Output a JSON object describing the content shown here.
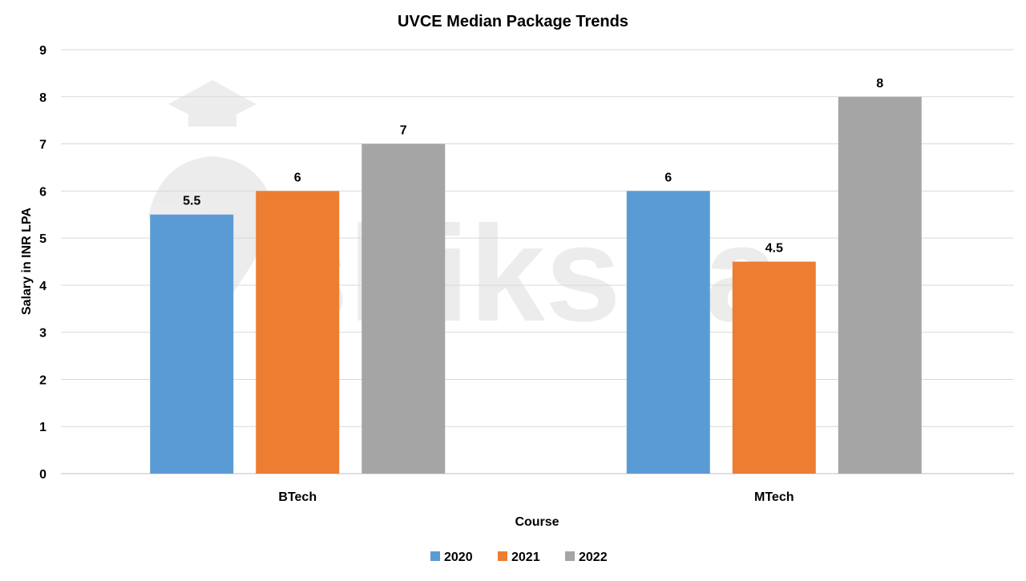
{
  "chart_data": {
    "type": "bar",
    "title": "UVCE Median Package Trends",
    "xlabel": "Course",
    "ylabel": "Salary in INR LPA",
    "categories": [
      "BTech",
      "MTech"
    ],
    "series": [
      {
        "name": "2020",
        "color": "#5B9BD5",
        "values": [
          5.5,
          6
        ],
        "labels": [
          "5.5",
          "6"
        ]
      },
      {
        "name": "2021",
        "color": "#ED7D31",
        "values": [
          6,
          4.5
        ],
        "labels": [
          "6",
          "4.5"
        ]
      },
      {
        "name": "2022",
        "color": "#A5A5A5",
        "values": [
          7,
          8
        ],
        "labels": [
          "7",
          "8"
        ]
      }
    ],
    "ylim": [
      0,
      9
    ],
    "yticks": [
      "0",
      "1",
      "2",
      "3",
      "4",
      "5",
      "6",
      "7",
      "8",
      "9"
    ],
    "grid": true,
    "legend": "bottom-center"
  },
  "watermark": "shiksha"
}
